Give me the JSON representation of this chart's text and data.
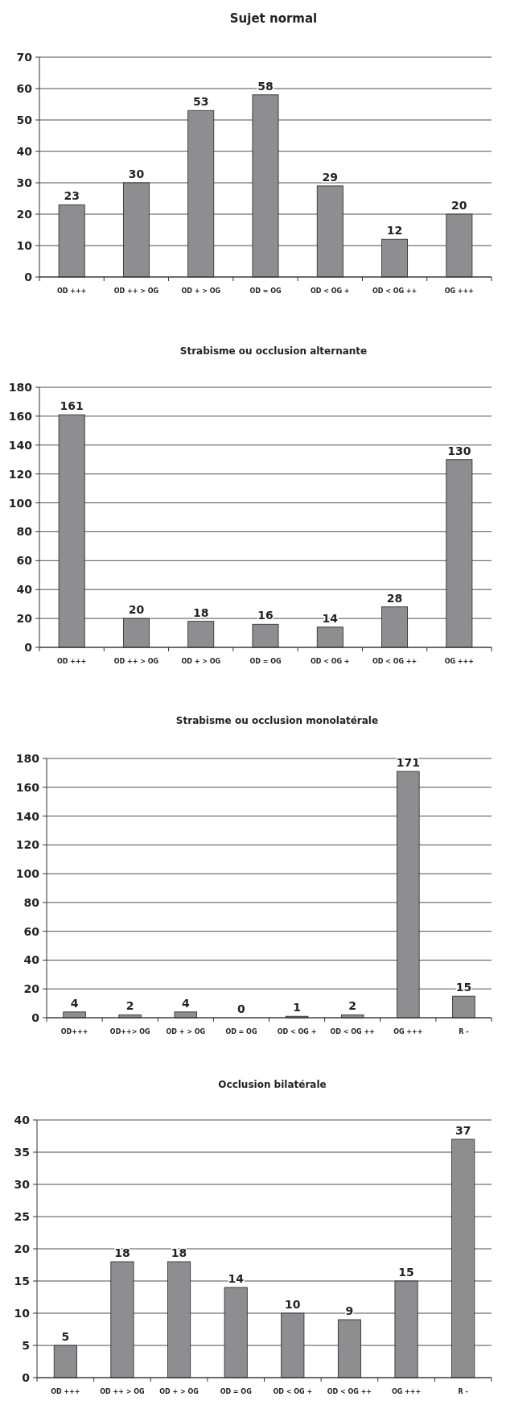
{
  "chart_data": [
    {
      "type": "bar",
      "title": "Sujet normal",
      "categories": [
        "OD +++",
        "OD ++ > OG",
        "OD + > OG",
        "OD = OG",
        "OD < OG +",
        "OD < OG ++",
        "OG +++"
      ],
      "values": [
        23,
        30,
        53,
        58,
        29,
        12,
        20
      ],
      "color": "#8e8e90",
      "ylim": [
        0,
        70
      ],
      "yticks": [
        0,
        10,
        20,
        30,
        40,
        50,
        60,
        70
      ],
      "grid": "y",
      "data_labels": true
    },
    {
      "type": "bar",
      "title": "Strabisme ou occlusion alternante",
      "categories": [
        "OD +++",
        "OD ++ > OG",
        "OD + > OG",
        "OD = OG",
        "OD < OG +",
        "OD < OG ++",
        "OG +++"
      ],
      "values": [
        161,
        20,
        18,
        16,
        14,
        28,
        130
      ],
      "color": "#8e8e90",
      "ylim": [
        0,
        180
      ],
      "yticks": [
        0,
        20,
        40,
        60,
        80,
        100,
        120,
        140,
        160,
        180
      ],
      "grid": "y",
      "data_labels": true
    },
    {
      "type": "bar",
      "title": "Strabisme ou occlusion monolatérale",
      "categories": [
        "OD+++",
        "OD++> OG",
        "OD + > OG",
        "OD = OG",
        "OD < OG +",
        "OD < OG ++",
        "OG +++",
        "R -"
      ],
      "values": [
        4,
        2,
        4,
        0,
        1,
        2,
        171,
        15
      ],
      "color": "#8e8e90",
      "ylim": [
        0,
        180
      ],
      "yticks": [
        0,
        20,
        40,
        60,
        80,
        100,
        120,
        140,
        160,
        180
      ],
      "grid": "y",
      "data_labels": true
    },
    {
      "type": "bar",
      "title": "Occlusion bilatérale",
      "categories": [
        "OD +++",
        "OD ++ > OG",
        "OD + > OG",
        "OD = OG",
        "OD < OG +",
        "OD < OG ++",
        "OG +++",
        "R -"
      ],
      "values": [
        5,
        18,
        18,
        14,
        10,
        9,
        15,
        37
      ],
      "color": "#8e8e90",
      "ylim": [
        0,
        40
      ],
      "yticks": [
        0,
        5,
        10,
        15,
        20,
        25,
        30,
        35,
        40
      ],
      "grid": "y",
      "data_labels": true
    }
  ]
}
